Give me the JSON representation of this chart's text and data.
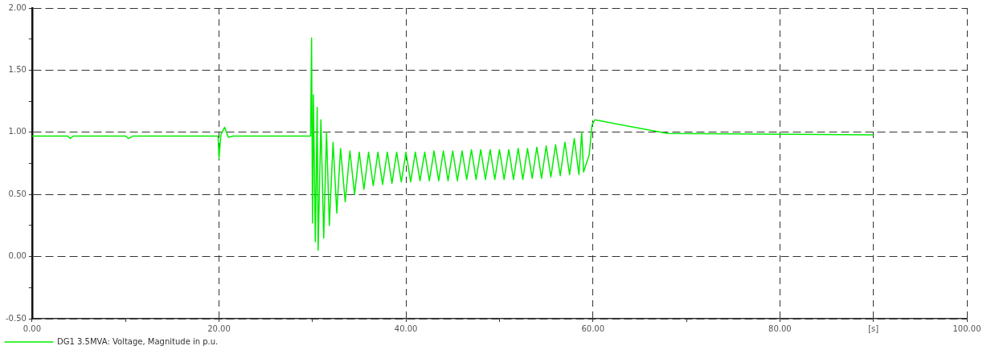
{
  "chart_data": {
    "type": "line",
    "xlim": [
      0,
      100
    ],
    "ylim": [
      -0.5,
      2
    ],
    "xticks": [
      {
        "value": 0,
        "label": "0.00"
      },
      {
        "value": 10,
        "label": null
      },
      {
        "value": 20,
        "label": "20.00"
      },
      {
        "value": 30,
        "label": null
      },
      {
        "value": 40,
        "label": "40.00"
      },
      {
        "value": 50,
        "label": null
      },
      {
        "value": 60,
        "label": "60.00"
      },
      {
        "value": 70,
        "label": null
      },
      {
        "value": 80,
        "label": "80.00"
      },
      {
        "value": 90,
        "label": "[s]"
      },
      {
        "value": 100,
        "label": "100.00"
      }
    ],
    "yticks": [
      {
        "value": -0.5,
        "label": "-0.50"
      },
      {
        "value": -0.25,
        "label": null
      },
      {
        "value": 0,
        "label": "0.00"
      },
      {
        "value": 0.25,
        "label": null
      },
      {
        "value": 0.5,
        "label": "0.50"
      },
      {
        "value": 0.75,
        "label": null
      },
      {
        "value": 1,
        "label": "1.00"
      },
      {
        "value": 1.25,
        "label": null
      },
      {
        "value": 1.5,
        "label": "1.50"
      },
      {
        "value": 1.75,
        "label": null
      },
      {
        "value": 2,
        "label": "2.00"
      }
    ],
    "grid": true,
    "legend": "bottom left",
    "marker": "none",
    "line_style": "solid",
    "series": [
      {
        "name": "DG1 3.5MVA: Voltage, Magnitude in p.u.",
        "color": "#00ee00",
        "x": [
          0,
          3.8,
          4.1,
          4.4,
          10,
          10.3,
          10.8,
          19.9,
          20,
          20.2,
          20.6,
          21,
          21.5,
          29.8,
          29.9,
          30,
          30.1,
          30.3,
          30.5,
          30.6,
          30.9,
          31.2,
          31.5,
          31.8,
          32.2,
          32.6,
          33,
          33.5,
          34,
          34.5,
          35,
          35.5,
          36,
          36.5,
          37,
          37.5,
          38,
          38.5,
          39,
          39.5,
          40,
          40.5,
          41,
          41.5,
          42,
          42.5,
          43,
          43.5,
          44,
          44.5,
          45,
          45.5,
          46,
          46.5,
          47,
          47.5,
          48,
          48.5,
          49,
          49.5,
          50,
          50.5,
          51,
          51.5,
          52,
          52.5,
          53,
          53.5,
          54,
          54.5,
          55,
          55.5,
          56,
          56.5,
          57,
          57.5,
          58,
          58.5,
          58.8,
          59,
          59.3,
          59.6,
          59.9,
          60.2,
          68,
          90
        ],
        "values": [
          0.97,
          0.97,
          0.95,
          0.97,
          0.97,
          0.95,
          0.97,
          0.97,
          0.79,
          0.98,
          1.04,
          0.96,
          0.97,
          0.97,
          1.76,
          0.27,
          1.3,
          0.12,
          1.2,
          0.05,
          1.1,
          0.15,
          1.0,
          0.25,
          0.92,
          0.35,
          0.87,
          0.44,
          0.85,
          0.5,
          0.84,
          0.54,
          0.84,
          0.57,
          0.84,
          0.58,
          0.84,
          0.59,
          0.84,
          0.6,
          0.84,
          0.6,
          0.84,
          0.61,
          0.84,
          0.61,
          0.85,
          0.61,
          0.85,
          0.61,
          0.85,
          0.61,
          0.85,
          0.62,
          0.86,
          0.62,
          0.86,
          0.62,
          0.86,
          0.62,
          0.86,
          0.62,
          0.86,
          0.62,
          0.87,
          0.62,
          0.87,
          0.63,
          0.88,
          0.63,
          0.89,
          0.64,
          0.9,
          0.65,
          0.92,
          0.66,
          0.95,
          0.66,
          1.0,
          0.68,
          0.75,
          0.82,
          1.06,
          1.1,
          0.99,
          0.98
        ]
      }
    ]
  }
}
